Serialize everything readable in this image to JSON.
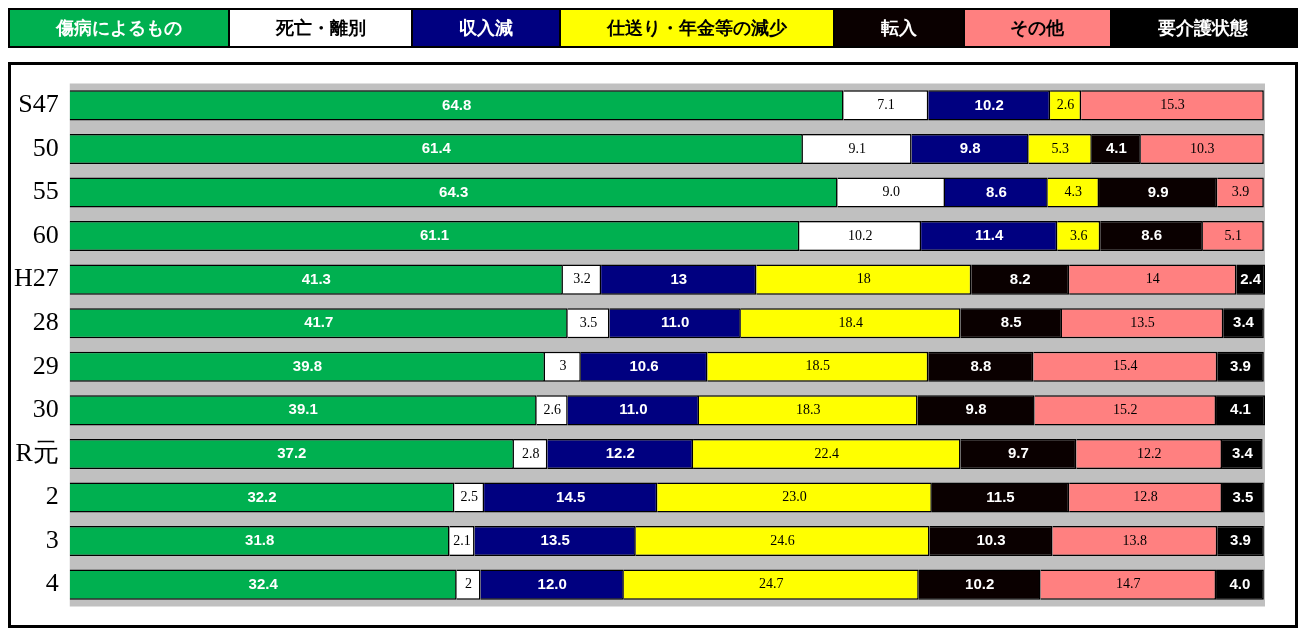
{
  "chart_data": {
    "type": "bar",
    "orientation": "horizontal",
    "stacked": true,
    "legend": "top",
    "categories": [
      "S47",
      "50",
      "55",
      "60",
      "H27",
      "28",
      "29",
      "30",
      "R元",
      "2",
      "3",
      "4"
    ],
    "series": [
      {
        "name": "傷病によるもの",
        "color": "#00b050",
        "values": [
          64.8,
          61.4,
          64.3,
          61.1,
          41.3,
          41.7,
          39.8,
          39.1,
          37.2,
          32.2,
          31.8,
          32.4
        ],
        "value_labels": [
          "64.8",
          "61.4",
          "64.3",
          "61.1",
          "41.3",
          "41.7",
          "39.8",
          "39.1",
          "37.2",
          "32.2",
          "31.8",
          "32.4"
        ]
      },
      {
        "name": "死亡・離別",
        "color": "#ffffff",
        "values": [
          7.1,
          9.1,
          9.0,
          10.2,
          3.2,
          3.5,
          3,
          2.6,
          2.8,
          2.5,
          2.1,
          2
        ],
        "value_labels": [
          "7.1",
          "9.1",
          "9.0",
          "10.2",
          "3.2",
          "3.5",
          "3",
          "2.6",
          "2.8",
          "2.5",
          "2.1",
          "2"
        ]
      },
      {
        "name": "収入減",
        "color": "#000080",
        "values": [
          10.2,
          9.8,
          8.6,
          11.4,
          13,
          11.0,
          10.6,
          11.0,
          12.2,
          14.5,
          13.5,
          12.0
        ],
        "value_labels": [
          "10.2",
          "9.8",
          "8.6",
          "11.4",
          "13",
          "11.0",
          "10.6",
          "11.0",
          "12.2",
          "14.5",
          "13.5",
          "12.0"
        ]
      },
      {
        "name": "仕送り・年金等の減少",
        "color": "#ffff00",
        "values": [
          2.6,
          5.3,
          4.3,
          3.6,
          18,
          18.4,
          18.5,
          18.3,
          22.4,
          23.0,
          24.6,
          24.7
        ],
        "value_labels": [
          "2.6",
          "5.3",
          "4.3",
          "3.6",
          "18",
          "18.4",
          "18.5",
          "18.3",
          "22.4",
          "23.0",
          "24.6",
          "24.7"
        ]
      },
      {
        "name": "転入",
        "color": "#0a0000",
        "values": [
          null,
          4.1,
          9.9,
          8.6,
          8.2,
          8.5,
          8.8,
          9.8,
          9.7,
          11.5,
          10.3,
          10.2
        ],
        "value_labels": [
          null,
          "4.1",
          "9.9",
          "8.6",
          "8.2",
          "8.5",
          "8.8",
          "9.8",
          "9.7",
          "11.5",
          "10.3",
          "10.2"
        ]
      },
      {
        "name": "その他",
        "color": "#ff8080",
        "values": [
          15.3,
          10.3,
          3.9,
          5.1,
          14,
          13.5,
          15.4,
          15.2,
          12.2,
          12.8,
          13.8,
          14.7
        ],
        "value_labels": [
          "15.3",
          "10.3",
          "3.9",
          "5.1",
          "14",
          "13.5",
          "15.4",
          "15.2",
          "12.2",
          "12.8",
          "13.8",
          "14.7"
        ]
      },
      {
        "name": "要介護状態",
        "color": "#000000",
        "values": [
          null,
          null,
          null,
          null,
          2.4,
          3.4,
          3.9,
          4.1,
          3.4,
          3.5,
          3.9,
          4.0
        ],
        "value_labels": [
          null,
          null,
          null,
          null,
          "2.4",
          "3.4",
          "3.9",
          "4.1",
          "3.4",
          "3.5",
          "3.9",
          "4.0"
        ]
      }
    ]
  }
}
